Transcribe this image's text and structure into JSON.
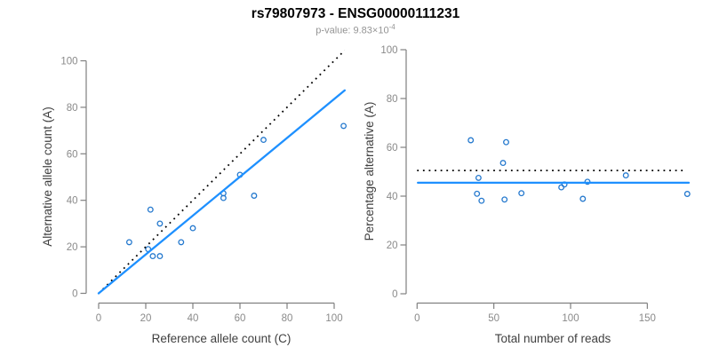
{
  "header": {
    "title": "rs79807973 - ENSG00000111231",
    "subtitle_text": "p-value: 9.83×10",
    "subtitle_exponent": "-4"
  },
  "colors": {
    "title": "#000000",
    "subtitle": "#949494",
    "axis": "#808080",
    "tick_label": "#8a8a8a",
    "axis_title": "#404040",
    "point": "#2579CE",
    "fit_line": "#1E90FF",
    "null_line": "#000000"
  },
  "chart_data": [
    {
      "type": "scatter",
      "name": "allele-counts",
      "xlabel": "Reference allele count (C)",
      "ylabel": "Alternative allele count (A)",
      "xlim": [
        0,
        104.5
      ],
      "ylim": [
        0,
        104.5
      ],
      "xticks": [
        0,
        20,
        40,
        60,
        80,
        100
      ],
      "yticks": [
        0,
        20,
        40,
        60,
        80,
        100
      ],
      "grid": false,
      "legend": "none",
      "points": [
        [
          13,
          22
        ],
        [
          21,
          19
        ],
        [
          22,
          36
        ],
        [
          23,
          16
        ],
        [
          26,
          16
        ],
        [
          26,
          30
        ],
        [
          35,
          22
        ],
        [
          40,
          28
        ],
        [
          53,
          41
        ],
        [
          53,
          43
        ],
        [
          60,
          51
        ],
        [
          66,
          42
        ],
        [
          70,
          66
        ],
        [
          104,
          72
        ]
      ],
      "lines": [
        {
          "name": "expected-50pct-line",
          "style": "dotted",
          "color": "#000000",
          "x1": 0,
          "y1": 0,
          "x2": 104.5,
          "y2": 104.5
        },
        {
          "name": "fitted-proportion-line",
          "style": "solid",
          "color": "#1E90FF",
          "x1": 0,
          "y1": 0,
          "x2": 104.5,
          "y2": 87.3
        }
      ]
    },
    {
      "type": "scatter",
      "name": "percentage-alternative",
      "xlabel": "Total number of reads",
      "ylabel": "Percentage alternative (A)",
      "xlim": [
        0,
        177
      ],
      "ylim": [
        0,
        100
      ],
      "xticks": [
        0,
        50,
        100,
        150
      ],
      "yticks": [
        0,
        20,
        40,
        60,
        80,
        100
      ],
      "grid": false,
      "legend": "none",
      "points": [
        [
          35,
          62.9
        ],
        [
          39,
          41.0
        ],
        [
          40,
          47.5
        ],
        [
          42,
          38.1
        ],
        [
          56,
          53.6
        ],
        [
          57,
          38.6
        ],
        [
          58,
          62.1
        ],
        [
          68,
          41.2
        ],
        [
          94,
          43.6
        ],
        [
          96,
          44.8
        ],
        [
          108,
          38.9
        ],
        [
          111,
          45.9
        ],
        [
          136,
          48.5
        ],
        [
          176,
          40.9
        ]
      ],
      "lines": [
        {
          "name": "expected-50pct-line",
          "style": "dotted",
          "color": "#000000",
          "x1": 0,
          "y1": 50.5,
          "x2": 174.5,
          "y2": 50.5
        },
        {
          "name": "mean-percentage-line",
          "style": "solid",
          "color": "#1E90FF",
          "x1": 0.5,
          "y1": 45.5,
          "x2": 177,
          "y2": 45.5
        }
      ]
    }
  ]
}
